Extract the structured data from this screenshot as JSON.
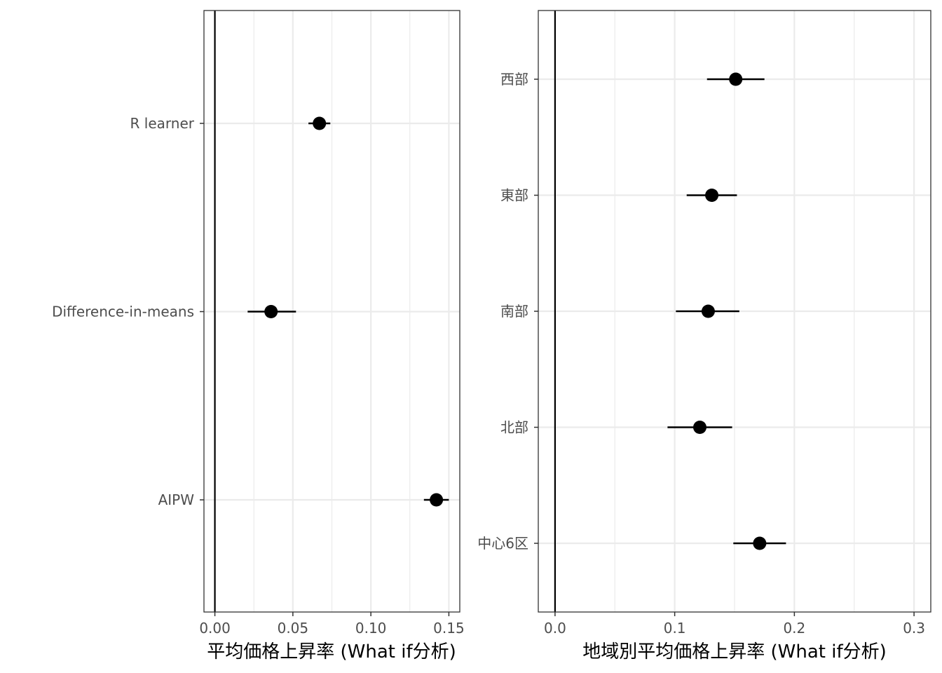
{
  "colors": {
    "grid": "#ebebeb",
    "panel_border": "#333333",
    "tick": "#333333",
    "point": "#000000",
    "tick_text": "#4d4d4d"
  },
  "chart_data": [
    {
      "type": "scatter",
      "subtype": "point-range (coefficient plot)",
      "title": "",
      "xlabel": "平均価格上昇率 (What if分析)",
      "ylabel": "",
      "xlim": [
        -0.007,
        0.157
      ],
      "x_ticks": [
        0.0,
        0.05,
        0.1,
        0.15
      ],
      "x_tick_labels": [
        "0.00",
        "0.05",
        "0.10",
        "0.15"
      ],
      "x_minor_ticks": [
        0.025,
        0.075,
        0.125
      ],
      "reference_line_x": 0,
      "grid": true,
      "categories": [
        "AIPW",
        "Difference-in-means",
        "R learner"
      ],
      "estimates": [
        0.142,
        0.036,
        0.067
      ],
      "ci_lower": [
        0.134,
        0.021,
        0.06
      ],
      "ci_upper": [
        0.15,
        0.052,
        0.074
      ]
    },
    {
      "type": "scatter",
      "subtype": "point-range (coefficient plot)",
      "title": "",
      "xlabel": "地域別平均価格上昇率 (What if分析)",
      "ylabel": "",
      "xlim": [
        -0.014,
        0.314
      ],
      "x_ticks": [
        0.0,
        0.1,
        0.2,
        0.3
      ],
      "x_tick_labels": [
        "0.0",
        "0.1",
        "0.2",
        "0.3"
      ],
      "x_minor_ticks": [
        0.05,
        0.15,
        0.25
      ],
      "reference_line_x": 0,
      "grid": true,
      "categories": [
        "中心6区",
        "北部",
        "南部",
        "東部",
        "西部"
      ],
      "estimates": [
        0.171,
        0.121,
        0.128,
        0.131,
        0.151
      ],
      "ci_lower": [
        0.149,
        0.094,
        0.101,
        0.11,
        0.127
      ],
      "ci_upper": [
        0.193,
        0.148,
        0.154,
        0.152,
        0.175
      ]
    }
  ]
}
